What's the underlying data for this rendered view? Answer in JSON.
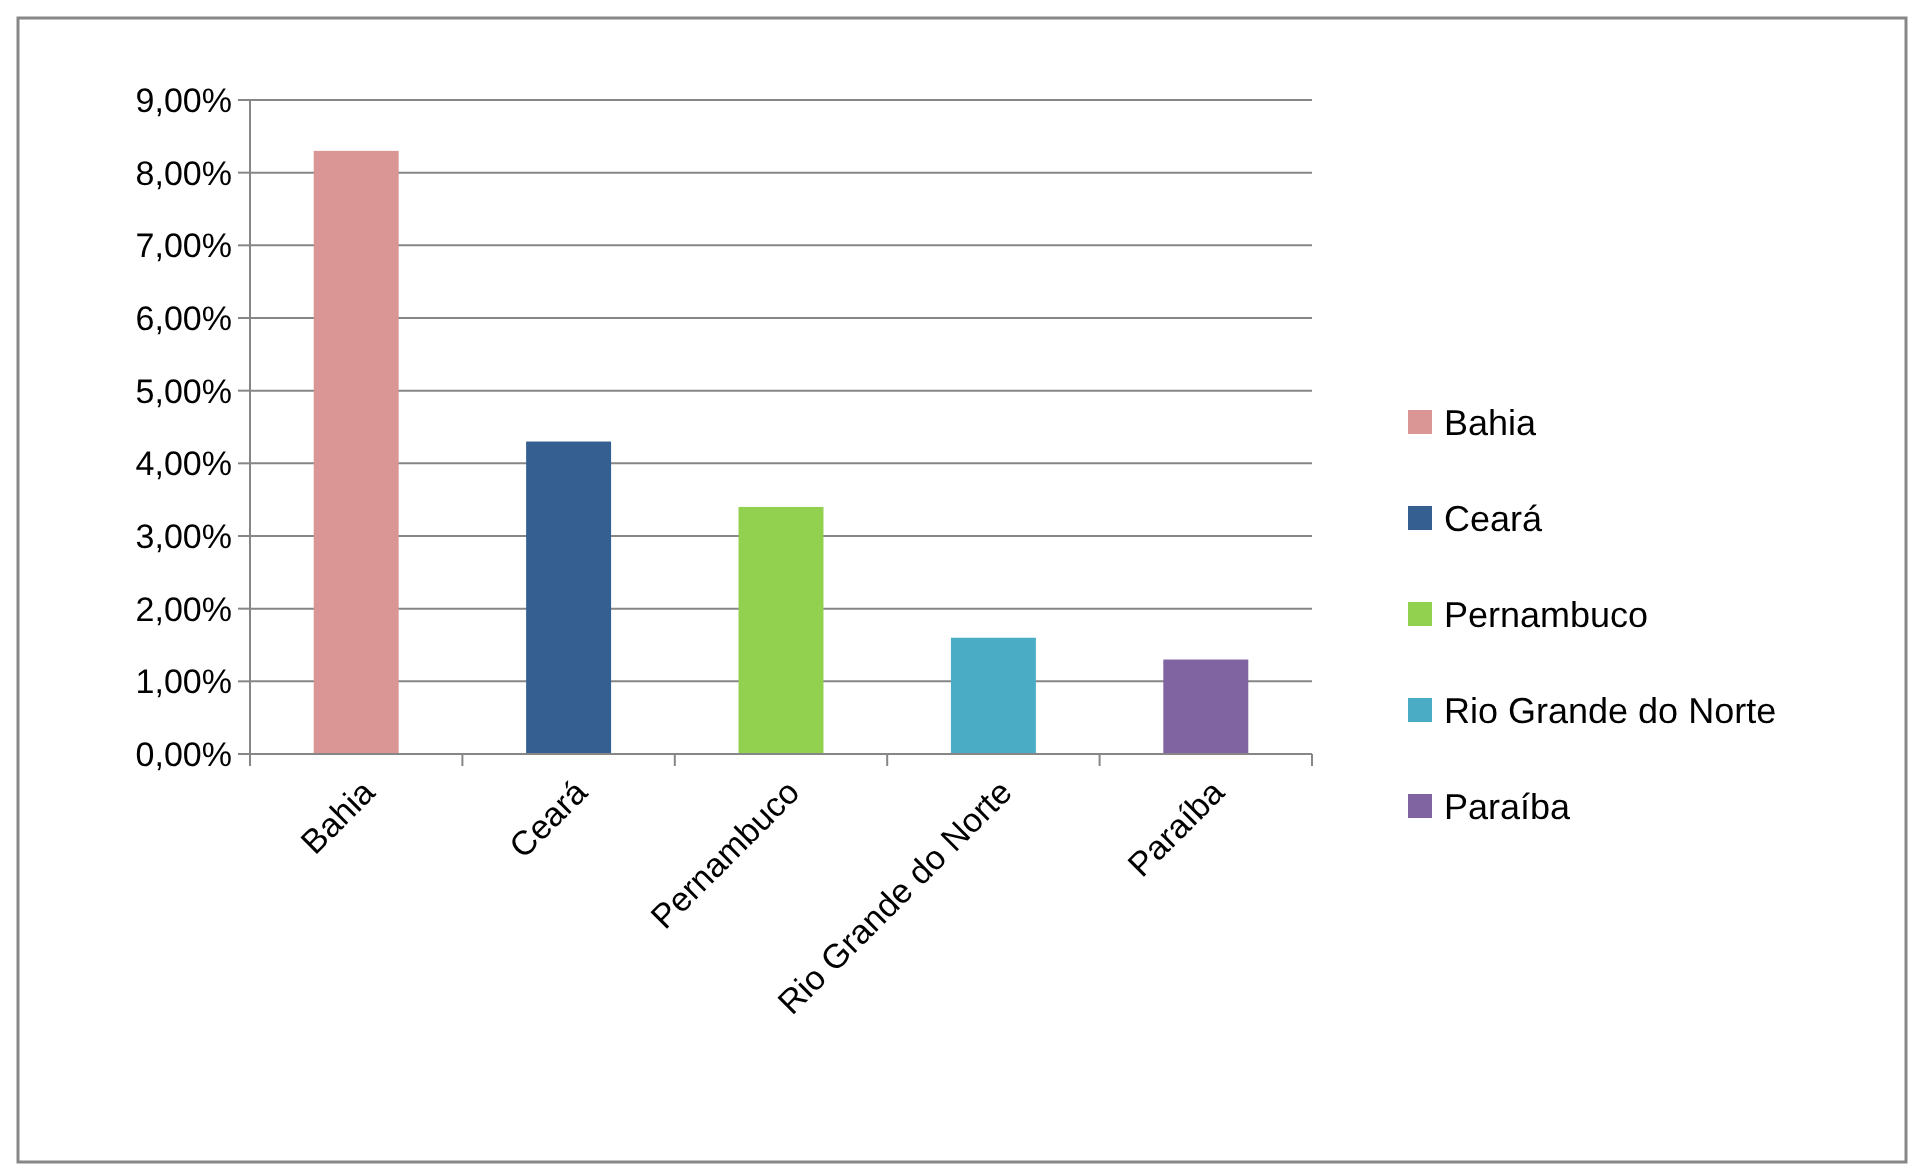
{
  "chart_data": {
    "type": "bar",
    "categories": [
      "Bahia",
      "Ceará",
      "Pernambuco",
      "Rio Grande do Norte",
      "Paraíba"
    ],
    "series": [
      {
        "name": "Bahia",
        "color": "#d99694",
        "values": [
          8.3,
          null,
          null,
          null,
          null
        ]
      },
      {
        "name": "Ceará",
        "color": "#355f91",
        "values": [
          null,
          4.3,
          null,
          null,
          null
        ]
      },
      {
        "name": "Pernambuco",
        "color": "#92d050",
        "values": [
          null,
          null,
          3.4,
          null,
          null
        ]
      },
      {
        "name": "Rio Grande do Norte",
        "color": "#4bacc6",
        "values": [
          null,
          null,
          null,
          1.6,
          null
        ]
      },
      {
        "name": "Paraíba",
        "color": "#8064a2",
        "values": [
          null,
          null,
          null,
          null,
          1.3
        ]
      }
    ],
    "ylim": [
      0,
      9
    ],
    "yticks": [
      {
        "value": 0,
        "label": "0,00%"
      },
      {
        "value": 1,
        "label": "1,00%"
      },
      {
        "value": 2,
        "label": "2,00%"
      },
      {
        "value": 3,
        "label": "3,00%"
      },
      {
        "value": 4,
        "label": "4,00%"
      },
      {
        "value": 5,
        "label": "5,00%"
      },
      {
        "value": 6,
        "label": "6,00%"
      },
      {
        "value": 7,
        "label": "7,00%"
      },
      {
        "value": 8,
        "label": "8,00%"
      },
      {
        "value": 9,
        "label": "9,00%"
      }
    ],
    "grid": "y",
    "legend": "right"
  }
}
